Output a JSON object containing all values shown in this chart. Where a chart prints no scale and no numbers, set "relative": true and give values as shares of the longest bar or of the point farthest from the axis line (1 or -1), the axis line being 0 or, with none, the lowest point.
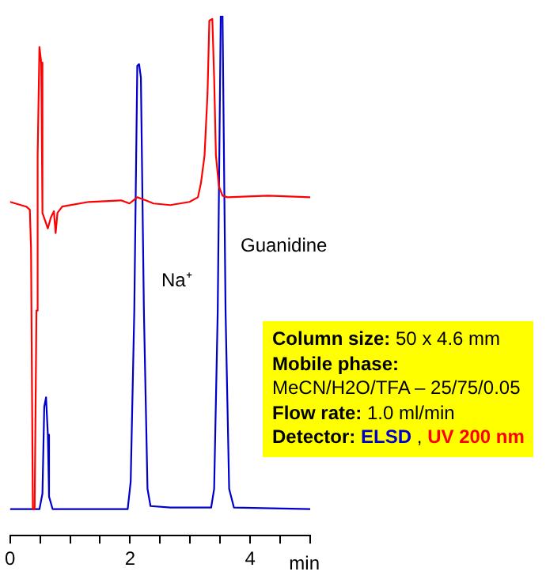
{
  "chart_data": {
    "type": "line",
    "relative": true,
    "xlabel": "min",
    "xlim": [
      0,
      5
    ],
    "xticks": [
      0,
      {
        "value": 0.5,
        "label": null
      },
      {
        "value": 1,
        "label": null
      },
      {
        "value": 1.5,
        "label": null
      },
      2,
      {
        "value": 2.5,
        "label": null
      },
      {
        "value": 3,
        "label": null
      },
      {
        "value": 3.5,
        "label": null
      },
      4,
      {
        "value": 4.5,
        "label": null
      },
      {
        "value": 5,
        "label": null
      }
    ],
    "grid": false,
    "legend": false,
    "marker": "none",
    "line_style": "solid",
    "series": [
      {
        "name": "ELSD",
        "color": "#0000cc",
        "x": [
          0,
          0.49,
          0.54,
          0.57,
          0.6,
          0.63,
          0.65,
          0.71,
          1.96,
          2.01,
          2.07,
          2.12,
          2.15,
          2.18,
          2.23,
          2.29,
          2.34,
          2.67,
          3.35,
          3.4,
          3.46,
          3.51,
          3.54,
          3.59,
          3.65,
          3.73,
          5
        ],
        "values": [
          0.051,
          0.051,
          0.081,
          0.248,
          0.266,
          0.194,
          0.075,
          0.051,
          0.051,
          0.104,
          0.433,
          0.904,
          0.907,
          0.881,
          0.433,
          0.09,
          0.057,
          0.054,
          0.054,
          0.09,
          0.433,
          1,
          1,
          0.433,
          0.09,
          0.054,
          0.051
        ]
      },
      {
        "name": "UV 200 nm",
        "color": "#ff0000",
        "x": [
          0,
          0.27,
          0.33,
          0.35,
          0.38,
          0.41,
          0.44,
          0.46,
          0.49,
          0.52,
          0.54,
          0.63,
          0.68,
          0.73,
          0.76,
          0.79,
          0.87,
          1.31,
          1.85,
          1.99,
          2.12,
          2.26,
          2.39,
          2.67,
          2.99,
          3.13,
          3.18,
          3.24,
          3.29,
          3.32,
          3.37,
          3.4,
          3.43,
          3.48,
          3.54,
          3.62,
          4.3,
          5
        ],
        "values": [
          0.642,
          0.633,
          0.627,
          0.552,
          0.051,
          0.051,
          0.433,
          0.731,
          0.94,
          0.91,
          0.621,
          0.591,
          0.612,
          0.624,
          0.582,
          0.621,
          0.633,
          0.642,
          0.645,
          0.639,
          0.651,
          0.645,
          0.639,
          0.636,
          0.642,
          0.651,
          0.678,
          0.731,
          0.851,
          0.991,
          0.994,
          0.881,
          0.731,
          0.672,
          0.654,
          0.651,
          0.654,
          0.651
        ]
      }
    ],
    "annotations": [
      "Guanidine",
      "Na⁺",
      "Column size: 50 x 4.6 mm",
      "Mobile phase:",
      "MeCN/H2O/TFA – 25/75/0.05",
      "Flow rate: 1.0 ml/min",
      "Detector:",
      ","
    ]
  }
}
